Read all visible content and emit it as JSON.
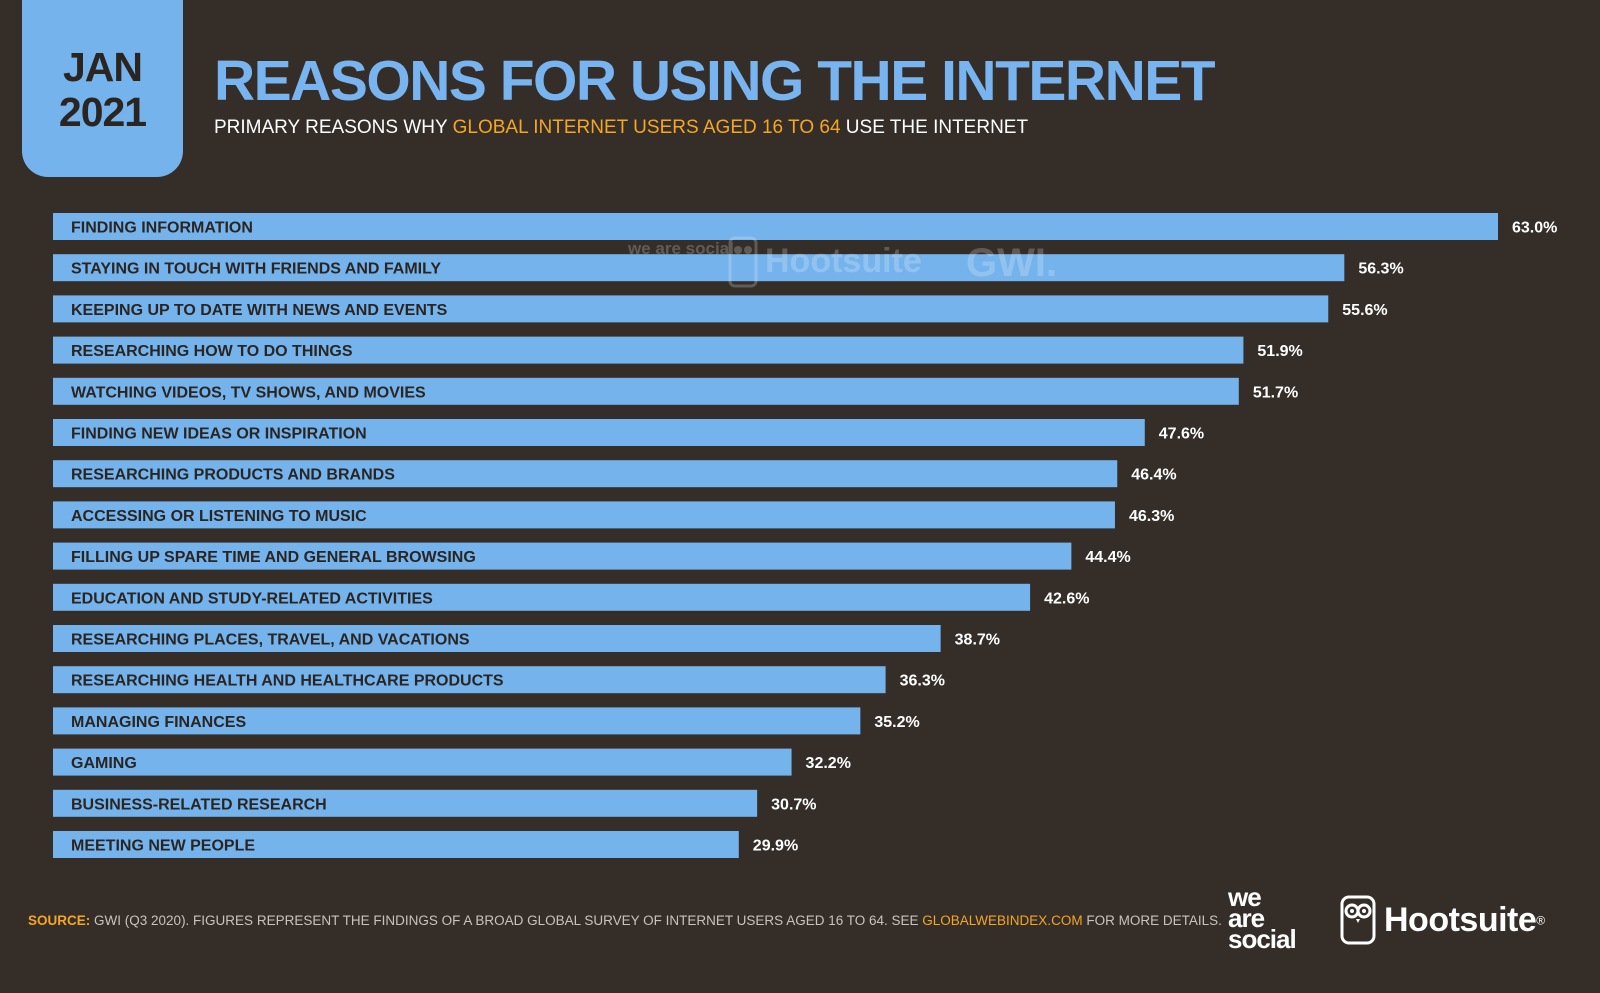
{
  "badge": {
    "month": "JAN",
    "year": "2021"
  },
  "header": {
    "title": "REASONS FOR USING THE INTERNET",
    "subtitle_before": "PRIMARY REASONS WHY",
    "subtitle_highlight": "GLOBAL INTERNET USERS AGED 16 TO 64",
    "subtitle_after": "USE THE INTERNET"
  },
  "watermark": {
    "we_are_social": "we are social",
    "hootsuite": "Hootsuite",
    "gwi": "GWI."
  },
  "chart_data": {
    "type": "bar",
    "orientation": "horizontal",
    "categories": [
      "FINDING INFORMATION",
      "STAYING IN TOUCH WITH FRIENDS AND FAMILY",
      "KEEPING UP TO DATE WITH NEWS AND EVENTS",
      "RESEARCHING HOW TO DO THINGS",
      "WATCHING VIDEOS, TV SHOWS, AND MOVIES",
      "FINDING NEW IDEAS OR INSPIRATION",
      "RESEARCHING PRODUCTS AND BRANDS",
      "ACCESSING OR LISTENING TO MUSIC",
      "FILLING UP SPARE TIME AND GENERAL BROWSING",
      "EDUCATION AND STUDY-RELATED ACTIVITIES",
      "RESEARCHING PLACES, TRAVEL, AND VACATIONS",
      "RESEARCHING HEALTH AND HEALTHCARE PRODUCTS",
      "MANAGING FINANCES",
      "GAMING",
      "BUSINESS-RELATED RESEARCH",
      "MEETING NEW PEOPLE"
    ],
    "values": [
      63.0,
      56.3,
      55.6,
      51.9,
      51.7,
      47.6,
      46.4,
      46.3,
      44.4,
      42.6,
      38.7,
      36.3,
      35.2,
      32.2,
      30.7,
      29.9
    ],
    "value_labels": [
      "63.0%",
      "56.3%",
      "55.6%",
      "51.9%",
      "51.7%",
      "47.6%",
      "46.4%",
      "46.3%",
      "44.4%",
      "42.6%",
      "38.7%",
      "36.3%",
      "35.2%",
      "32.2%",
      "30.7%",
      "29.9%"
    ],
    "xlim": [
      0,
      63.0
    ],
    "grid": false,
    "legend": "none",
    "bar_color": "#74b3ec"
  },
  "footer": {
    "source_label": "SOURCE:",
    "source_text": "GWI (Q3 2020). FIGURES REPRESENT THE FINDINGS OF A BROAD GLOBAL SURVEY OF INTERNET USERS AGED 16 TO 64. SEE",
    "source_link": "GLOBALWEBINDEX.COM",
    "source_after": "FOR MORE DETAILS.",
    "logo_we": "we",
    "logo_are": "are",
    "logo_social": "social",
    "logo_hootsuite": "Hootsuite",
    "logo_reg": "®"
  }
}
